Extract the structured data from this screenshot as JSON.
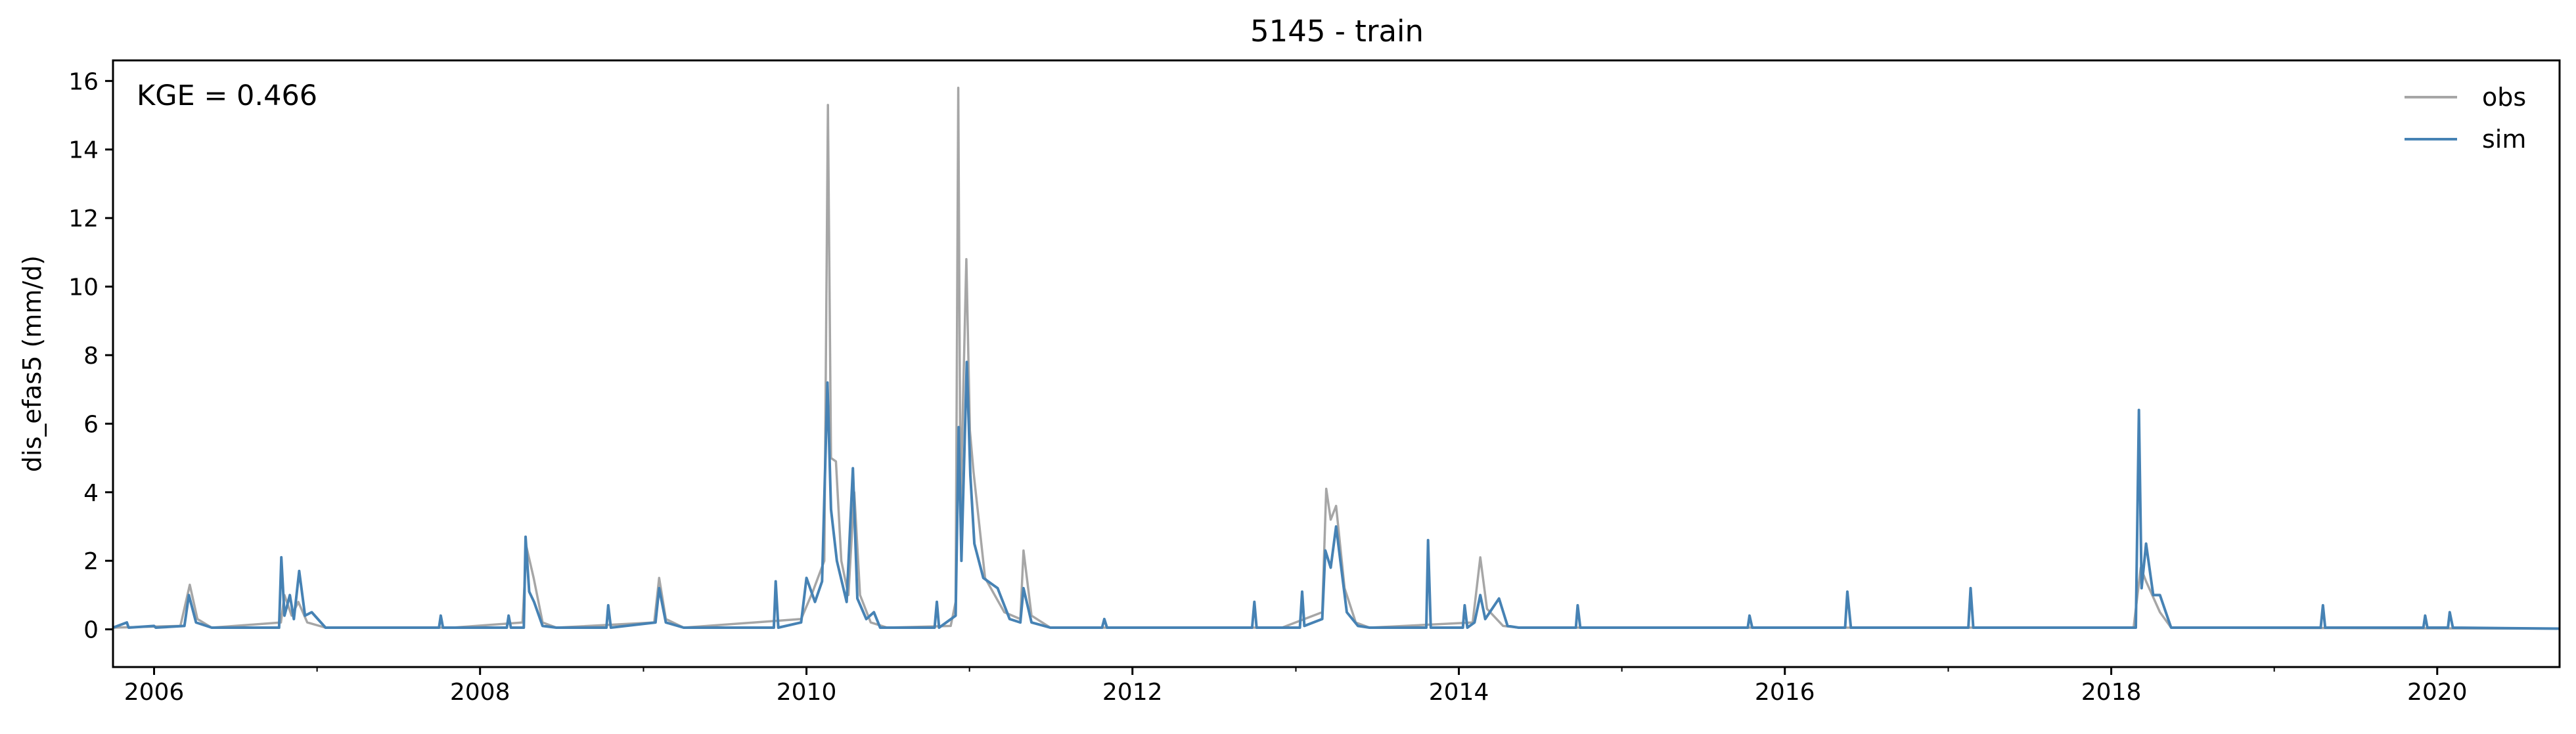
{
  "chart_data": {
    "type": "line",
    "title": "5145 - train",
    "xlabel": "",
    "ylabel": "dis_efas5 (mm/d)",
    "annotation": "KGE = 0.466",
    "xlim": [
      "2005-10-01",
      "2020-10-01"
    ],
    "ylim": [
      -1.1,
      16.6
    ],
    "x_ticks": [
      "2006",
      "2008",
      "2010",
      "2012",
      "2014",
      "2016",
      "2018",
      "2020"
    ],
    "y_ticks": [
      "0",
      "2",
      "4",
      "6",
      "8",
      "10",
      "12",
      "14",
      "16"
    ],
    "legend_position": "top-right",
    "grid": false,
    "colors": {
      "obs": "#a6a6a6",
      "sim": "#4682b4"
    },
    "series": [
      {
        "name": "obs",
        "points": [
          [
            "2005-10-01",
            0.05
          ],
          [
            "2006-03-01",
            0.1
          ],
          [
            "2006-03-22",
            1.3
          ],
          [
            "2006-04-08",
            0.3
          ],
          [
            "2006-05-10",
            0.05
          ],
          [
            "2006-10-12",
            0.2
          ],
          [
            "2006-10-20",
            1.0
          ],
          [
            "2006-11-05",
            0.4
          ],
          [
            "2006-11-20",
            0.8
          ],
          [
            "2006-12-10",
            0.2
          ],
          [
            "2007-01-20",
            0.05
          ],
          [
            "2007-11-01",
            0.05
          ],
          [
            "2008-04-05",
            0.2
          ],
          [
            "2008-04-14",
            2.4
          ],
          [
            "2008-04-30",
            1.5
          ],
          [
            "2008-05-20",
            0.2
          ],
          [
            "2008-06-20",
            0.05
          ],
          [
            "2009-01-25",
            0.2
          ],
          [
            "2009-02-05",
            1.5
          ],
          [
            "2009-02-20",
            0.3
          ],
          [
            "2009-04-01",
            0.05
          ],
          [
            "2009-12-20",
            0.3
          ],
          [
            "2010-01-15",
            1.1
          ],
          [
            "2010-02-10",
            2.0
          ],
          [
            "2010-02-18",
            15.3
          ],
          [
            "2010-02-25",
            5.0
          ],
          [
            "2010-03-08",
            4.9
          ],
          [
            "2010-03-20",
            2.0
          ],
          [
            "2010-04-05",
            1.0
          ],
          [
            "2010-04-18",
            4.0
          ],
          [
            "2010-05-01",
            1.0
          ],
          [
            "2010-05-25",
            0.2
          ],
          [
            "2010-07-01",
            0.05
          ],
          [
            "2010-11-20",
            0.1
          ],
          [
            "2010-12-01",
            0.8
          ],
          [
            "2010-12-07",
            15.8
          ],
          [
            "2010-12-12",
            3.5
          ],
          [
            "2010-12-25",
            10.8
          ],
          [
            "2011-01-02",
            5.8
          ],
          [
            "2011-01-10",
            4.6
          ],
          [
            "2011-02-05",
            1.5
          ],
          [
            "2011-03-20",
            0.5
          ],
          [
            "2011-04-25",
            0.3
          ],
          [
            "2011-05-02",
            2.3
          ],
          [
            "2011-05-20",
            0.4
          ],
          [
            "2011-07-01",
            0.05
          ],
          [
            "2012-12-01",
            0.05
          ],
          [
            "2013-03-01",
            0.5
          ],
          [
            "2013-03-10",
            4.1
          ],
          [
            "2013-03-20",
            3.2
          ],
          [
            "2013-04-01",
            3.6
          ],
          [
            "2013-04-20",
            1.2
          ],
          [
            "2013-05-15",
            0.2
          ],
          [
            "2013-06-15",
            0.05
          ],
          [
            "2014-02-01",
            0.2
          ],
          [
            "2014-02-18",
            2.1
          ],
          [
            "2014-03-05",
            0.6
          ],
          [
            "2014-04-10",
            0.1
          ],
          [
            "2014-05-15",
            0.05
          ],
          [
            "2018-02-20",
            0.05
          ],
          [
            "2018-03-08",
            1.8
          ],
          [
            "2018-03-20",
            1.4
          ],
          [
            "2018-04-20",
            0.5
          ],
          [
            "2018-05-15",
            0.05
          ],
          [
            "2020-10-01",
            0.02
          ]
        ]
      },
      {
        "name": "sim",
        "points": [
          [
            "2005-10-01",
            0.05
          ],
          [
            "2005-11-01",
            0.2
          ],
          [
            "2005-11-05",
            0.05
          ],
          [
            "2006-01-01",
            0.1
          ],
          [
            "2006-01-05",
            0.05
          ],
          [
            "2006-03-10",
            0.1
          ],
          [
            "2006-03-20",
            1.0
          ],
          [
            "2006-04-05",
            0.2
          ],
          [
            "2006-05-10",
            0.05
          ],
          [
            "2006-10-08",
            0.05
          ],
          [
            "2006-10-13",
            2.1
          ],
          [
            "2006-10-20",
            0.4
          ],
          [
            "2006-11-01",
            1.0
          ],
          [
            "2006-11-10",
            0.3
          ],
          [
            "2006-11-22",
            1.7
          ],
          [
            "2006-12-05",
            0.4
          ],
          [
            "2006-12-20",
            0.5
          ],
          [
            "2007-01-20",
            0.05
          ],
          [
            "2007-10-01",
            0.05
          ],
          [
            "2007-10-05",
            0.4
          ],
          [
            "2007-10-10",
            0.05
          ],
          [
            "2008-03-01",
            0.05
          ],
          [
            "2008-03-05",
            0.4
          ],
          [
            "2008-03-10",
            0.05
          ],
          [
            "2008-04-08",
            0.05
          ],
          [
            "2008-04-12",
            2.7
          ],
          [
            "2008-04-20",
            1.1
          ],
          [
            "2008-05-01",
            0.8
          ],
          [
            "2008-05-20",
            0.1
          ],
          [
            "2008-06-20",
            0.05
          ],
          [
            "2008-10-10",
            0.05
          ],
          [
            "2008-10-14",
            0.7
          ],
          [
            "2008-10-20",
            0.05
          ],
          [
            "2009-01-28",
            0.2
          ],
          [
            "2009-02-05",
            1.2
          ],
          [
            "2009-02-20",
            0.2
          ],
          [
            "2009-04-01",
            0.05
          ],
          [
            "2009-10-20",
            0.05
          ],
          [
            "2009-10-24",
            1.4
          ],
          [
            "2009-10-30",
            0.05
          ],
          [
            "2009-12-20",
            0.2
          ],
          [
            "2010-01-01",
            1.5
          ],
          [
            "2010-01-20",
            0.8
          ],
          [
            "2010-02-05",
            1.4
          ],
          [
            "2010-02-17",
            7.2
          ],
          [
            "2010-02-25",
            3.5
          ],
          [
            "2010-03-10",
            2.0
          ],
          [
            "2010-04-01",
            0.8
          ],
          [
            "2010-04-15",
            4.7
          ],
          [
            "2010-04-25",
            0.9
          ],
          [
            "2010-05-15",
            0.3
          ],
          [
            "2010-06-01",
            0.5
          ],
          [
            "2010-06-15",
            0.05
          ],
          [
            "2010-10-15",
            0.05
          ],
          [
            "2010-10-20",
            0.8
          ],
          [
            "2010-10-25",
            0.05
          ],
          [
            "2010-12-01",
            0.4
          ],
          [
            "2010-12-08",
            5.9
          ],
          [
            "2010-12-14",
            2.0
          ],
          [
            "2010-12-26",
            7.8
          ],
          [
            "2011-01-03",
            4.5
          ],
          [
            "2011-01-12",
            2.5
          ],
          [
            "2011-02-01",
            1.5
          ],
          [
            "2011-03-05",
            1.2
          ],
          [
            "2011-04-01",
            0.3
          ],
          [
            "2011-04-25",
            0.2
          ],
          [
            "2011-05-02",
            1.2
          ],
          [
            "2011-05-20",
            0.2
          ],
          [
            "2011-07-01",
            0.05
          ],
          [
            "2011-10-25",
            0.05
          ],
          [
            "2011-10-30",
            0.3
          ],
          [
            "2011-11-05",
            0.05
          ],
          [
            "2012-09-25",
            0.05
          ],
          [
            "2012-09-30",
            0.8
          ],
          [
            "2012-10-05",
            0.05
          ],
          [
            "2013-01-10",
            0.05
          ],
          [
            "2013-01-15",
            1.1
          ],
          [
            "2013-01-20",
            0.1
          ],
          [
            "2013-03-01",
            0.3
          ],
          [
            "2013-03-08",
            2.3
          ],
          [
            "2013-03-20",
            1.8
          ],
          [
            "2013-04-01",
            3.0
          ],
          [
            "2013-04-25",
            0.5
          ],
          [
            "2013-05-20",
            0.1
          ],
          [
            "2013-06-15",
            0.05
          ],
          [
            "2013-10-20",
            0.05
          ],
          [
            "2013-10-24",
            2.6
          ],
          [
            "2013-10-30",
            0.05
          ],
          [
            "2014-01-10",
            0.05
          ],
          [
            "2014-01-14",
            0.7
          ],
          [
            "2014-01-20",
            0.05
          ],
          [
            "2014-02-05",
            0.2
          ],
          [
            "2014-02-18",
            1.0
          ],
          [
            "2014-03-01",
            0.3
          ],
          [
            "2014-04-01",
            0.9
          ],
          [
            "2014-04-20",
            0.1
          ],
          [
            "2014-05-15",
            0.05
          ],
          [
            "2014-09-20",
            0.05
          ],
          [
            "2014-09-24",
            0.7
          ],
          [
            "2014-09-30",
            0.05
          ],
          [
            "2015-10-10",
            0.05
          ],
          [
            "2015-10-14",
            0.4
          ],
          [
            "2015-10-20",
            0.05
          ],
          [
            "2016-05-15",
            0.05
          ],
          [
            "2016-05-20",
            1.1
          ],
          [
            "2016-05-28",
            0.05
          ],
          [
            "2017-02-15",
            0.05
          ],
          [
            "2017-02-20",
            1.2
          ],
          [
            "2017-02-26",
            0.05
          ],
          [
            "2018-02-25",
            0.05
          ],
          [
            "2018-03-04",
            6.4
          ],
          [
            "2018-03-10",
            1.2
          ],
          [
            "2018-03-20",
            2.5
          ],
          [
            "2018-04-05",
            1.0
          ],
          [
            "2018-04-20",
            1.0
          ],
          [
            "2018-05-15",
            0.05
          ],
          [
            "2019-04-15",
            0.05
          ],
          [
            "2019-04-20",
            0.7
          ],
          [
            "2019-04-25",
            0.05
          ],
          [
            "2019-12-01",
            0.05
          ],
          [
            "2019-12-05",
            0.4
          ],
          [
            "2019-12-10",
            0.05
          ],
          [
            "2020-01-25",
            0.05
          ],
          [
            "2020-01-29",
            0.5
          ],
          [
            "2020-02-05",
            0.05
          ],
          [
            "2020-10-01",
            0.02
          ]
        ]
      }
    ]
  }
}
